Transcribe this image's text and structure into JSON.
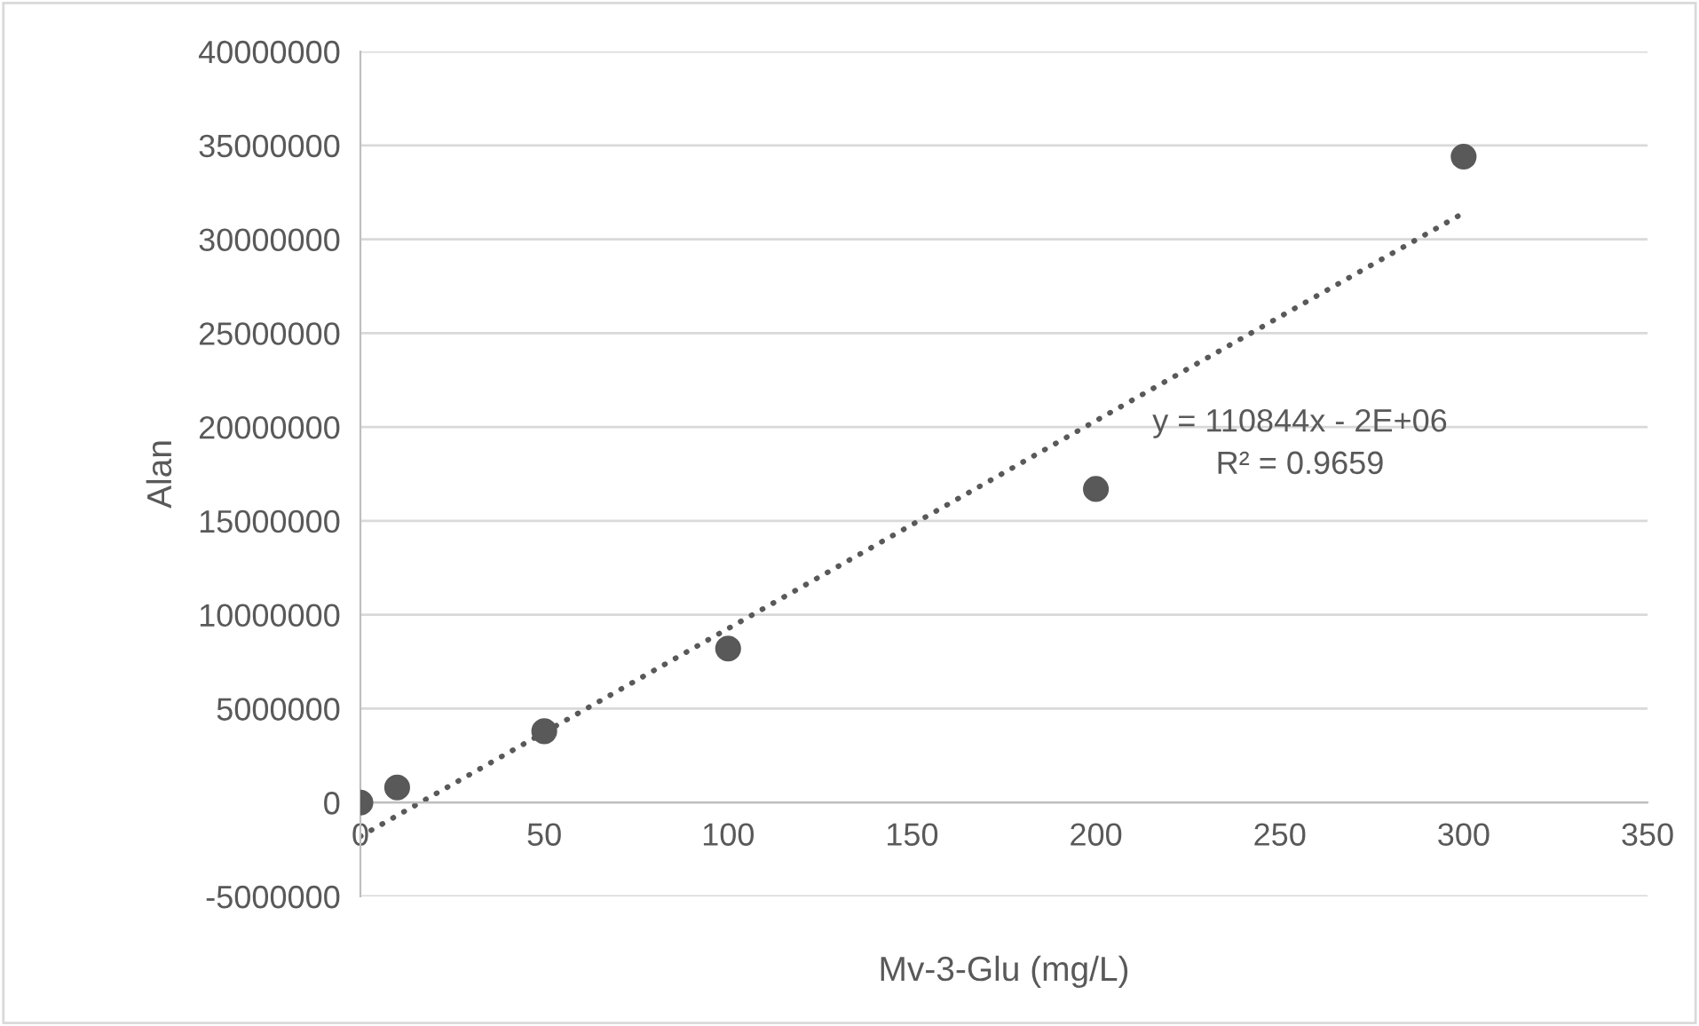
{
  "chart_data": {
    "type": "scatter",
    "xlabel": "Mv-3-Glu (mg/L)",
    "ylabel": "Alan",
    "xlim": [
      0,
      350
    ],
    "xticks": [
      0,
      50,
      100,
      150,
      200,
      250,
      300,
      350
    ],
    "ylim": [
      -5000000,
      40000000
    ],
    "yticks": [
      -5000000,
      0,
      5000000,
      10000000,
      15000000,
      20000000,
      25000000,
      30000000,
      35000000,
      40000000
    ],
    "grid": "y",
    "marker": "circle",
    "series": [
      {
        "color": "#595959",
        "x": [
          0,
          10,
          50,
          100,
          200,
          300
        ],
        "values": [
          0,
          800000,
          3800000,
          8200000,
          16700000,
          34400000
        ]
      },
      {
        "type": "line",
        "color": "#595959",
        "line_style": "dotted",
        "marker": "none",
        "x": [
          0,
          300
        ],
        "values": [
          -1800000,
          31400000
        ]
      }
    ],
    "annotations": [
      "y = 110844x - 2E+06",
      "R² = 0.9659"
    ]
  }
}
